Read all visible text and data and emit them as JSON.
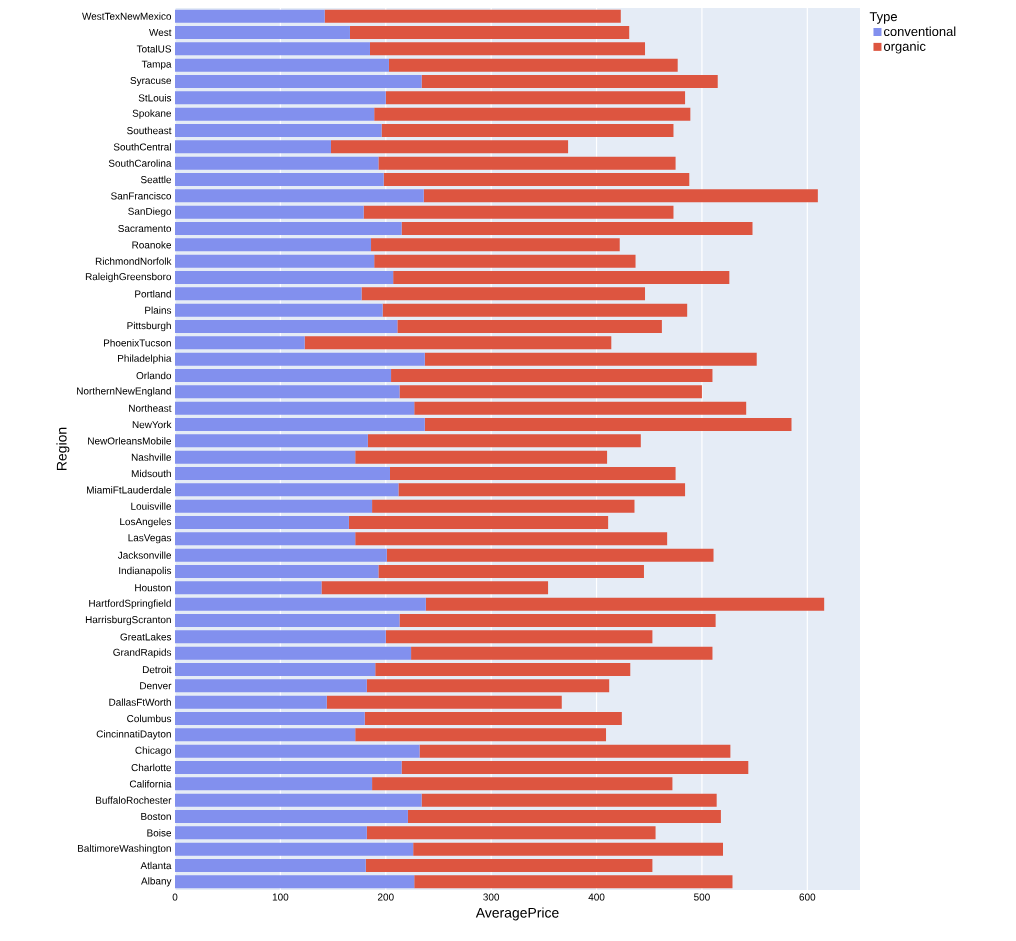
{
  "chart_data": {
    "type": "bar",
    "orientation": "horizontal",
    "stacked": true,
    "xlabel": "AveragePrice",
    "ylabel": "Region",
    "legend_title": "Type",
    "categories": [
      "WestTexNewMexico",
      "West",
      "TotalUS",
      "Tampa",
      "Syracuse",
      "StLouis",
      "Spokane",
      "Southeast",
      "SouthCentral",
      "SouthCarolina",
      "Seattle",
      "SanFrancisco",
      "SanDiego",
      "Sacramento",
      "Roanoke",
      "RichmondNorfolk",
      "RaleighGreensboro",
      "Portland",
      "Plains",
      "Pittsburgh",
      "PhoenixTucson",
      "Philadelphia",
      "Orlando",
      "NorthernNewEngland",
      "Northeast",
      "NewYork",
      "NewOrleansMobile",
      "Nashville",
      "Midsouth",
      "MiamiFtLauderdale",
      "Louisville",
      "LosAngeles",
      "LasVegas",
      "Jacksonville",
      "Indianapolis",
      "Houston",
      "HartfordSpringfield",
      "HarrisburgScranton",
      "GreatLakes",
      "GrandRapids",
      "Detroit",
      "Denver",
      "DallasFtWorth",
      "Columbus",
      "CincinnatiDayton",
      "Chicago",
      "Charlotte",
      "California",
      "BuffaloRochester",
      "Boston",
      "Boise",
      "BaltimoreWashington",
      "Atlanta",
      "Albany"
    ],
    "series": [
      {
        "name": "conventional",
        "color": "#8290ee",
        "values": [
          142,
          166,
          185,
          203,
          234,
          200,
          189,
          196,
          148,
          193,
          198,
          236,
          179,
          215,
          186,
          189,
          207,
          177,
          197,
          211,
          123,
          237,
          205,
          213,
          227,
          237,
          183,
          171,
          204,
          212,
          187,
          165,
          171,
          201,
          193,
          139,
          238,
          213,
          200,
          224,
          190,
          182,
          144,
          180,
          171,
          232,
          215,
          187,
          234,
          221,
          182,
          226,
          181,
          227
        ]
      },
      {
        "name": "organic",
        "color": "#dd5540",
        "values": [
          281,
          265,
          261,
          274,
          281,
          284,
          300,
          277,
          225,
          282,
          290,
          374,
          294,
          333,
          236,
          248,
          319,
          269,
          289,
          251,
          291,
          315,
          305,
          287,
          315,
          348,
          259,
          239,
          271,
          272,
          249,
          246,
          296,
          310,
          252,
          215,
          378,
          300,
          253,
          286,
          242,
          230,
          223,
          244,
          238,
          295,
          329,
          285,
          280,
          297,
          274,
          294,
          272,
          302
        ]
      }
    ],
    "xlim": [
      0,
      650
    ],
    "xticks": [
      0,
      100,
      200,
      300,
      400,
      500,
      600
    ],
    "grid": "x",
    "legend": "top right"
  }
}
